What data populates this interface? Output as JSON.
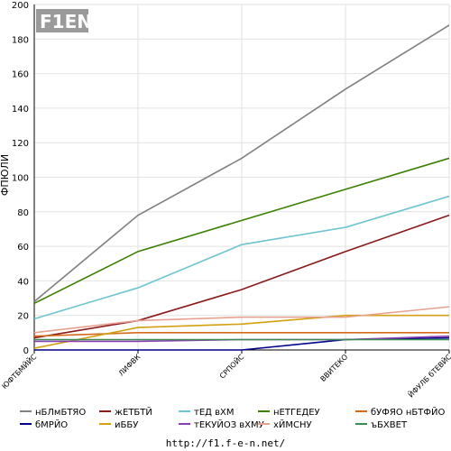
{
  "footer": {
    "url": "http://f1.f-e-n.net/"
  },
  "logo": {
    "text": "F1EN"
  },
  "chart_data": {
    "type": "line",
    "ylabel": "ФПЮЛИ",
    "xlabel": "",
    "ylim": [
      0,
      200
    ],
    "yticks": [
      0,
      20,
      40,
      60,
      80,
      100,
      120,
      140,
      160,
      180,
      200
    ],
    "grid": true,
    "legend_position": "bottom",
    "categories": [
      "ЮФТБМЙЙС",
      "ЛИФВК",
      "СРПОЙС",
      "ВВИТЕКО",
      "ЙФУЛБ бТЕВЙС"
    ],
    "series": [
      {
        "name": "нБЛмБТЯО",
        "color": "#808080",
        "values": [
          28,
          78,
          111,
          151,
          188
        ]
      },
      {
        "name": "жЕТБТЙ",
        "color": "#8b1a1a",
        "values": [
          7,
          17,
          35,
          57,
          78
        ]
      },
      {
        "name": "тЕД вХМ",
        "color": "#6cc5cf",
        "values": [
          18,
          36,
          61,
          71,
          89
        ]
      },
      {
        "name": "нЕТГЕДЕУ",
        "color": "#3c7f00",
        "values": [
          27,
          57,
          75,
          93,
          111
        ]
      },
      {
        "name": "бУФЯО нБТФЙО",
        "color": "#d46a1a",
        "values": [
          8,
          10,
          10,
          10,
          10
        ]
      },
      {
        "name": "бМРЙО",
        "color": "#00008b",
        "values": [
          0,
          0,
          0,
          6,
          7
        ]
      },
      {
        "name": "иББУ",
        "color": "#d4a010",
        "values": [
          1,
          13,
          15,
          20,
          20
        ]
      },
      {
        "name": "тЕКУЙОЗ вХМУ",
        "color": "#8b3fb5",
        "values": [
          5,
          5,
          6,
          6,
          8
        ]
      },
      {
        "name": "хЙМСНУ",
        "color": "#e8a090",
        "values": [
          10,
          17,
          19,
          19,
          25
        ]
      },
      {
        "name": "ъБХВЕТ",
        "color": "#3c8c50",
        "values": [
          6,
          6,
          6,
          6,
          6
        ]
      }
    ]
  }
}
